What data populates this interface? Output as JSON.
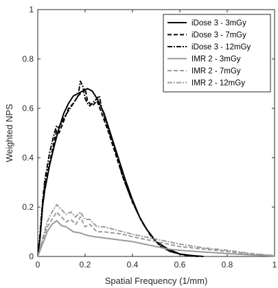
{
  "chart_data": {
    "type": "line",
    "xlabel": "Spatial Frequency (1/mm)",
    "ylabel": "Weighted NPS",
    "xlim": [
      0,
      1
    ],
    "ylim": [
      0,
      1
    ],
    "x_ticks": [
      0,
      0.2,
      0.4,
      0.6,
      0.8,
      1
    ],
    "x_tick_labels": [
      "0",
      "0.2",
      "0.4",
      "0.6",
      "0.8",
      "1"
    ],
    "y_ticks": [
      0,
      0.2,
      0.4,
      0.6,
      0.8,
      1
    ],
    "y_tick_labels": [
      "0",
      "0.2",
      "0.4",
      "0.6",
      "0.8",
      "1"
    ],
    "grid": false,
    "legend_position": "top-right",
    "series": [
      {
        "name": "iDose 3 - 3mGy",
        "color": "#000000",
        "dash": "solid",
        "x": [
          0,
          0.01,
          0.02,
          0.03,
          0.05,
          0.07,
          0.09,
          0.11,
          0.13,
          0.15,
          0.17,
          0.19,
          0.21,
          0.23,
          0.25,
          0.28,
          0.31,
          0.34,
          0.37,
          0.4,
          0.43,
          0.46,
          0.5,
          0.55,
          0.6,
          0.65,
          0.7
        ],
        "y": [
          0,
          0.08,
          0.2,
          0.27,
          0.37,
          0.45,
          0.52,
          0.58,
          0.62,
          0.65,
          0.66,
          0.67,
          0.68,
          0.67,
          0.64,
          0.58,
          0.49,
          0.4,
          0.31,
          0.23,
          0.16,
          0.11,
          0.06,
          0.03,
          0.01,
          0.004,
          0
        ]
      },
      {
        "name": "iDose 3 - 7mGy",
        "color": "#000000",
        "dash": "dashed",
        "x": [
          0,
          0.01,
          0.02,
          0.03,
          0.05,
          0.07,
          0.08,
          0.09,
          0.11,
          0.13,
          0.15,
          0.17,
          0.19,
          0.2,
          0.21,
          0.23,
          0.25,
          0.27,
          0.3,
          0.33,
          0.36,
          0.4,
          0.44,
          0.48,
          0.52,
          0.56,
          0.62,
          0.68
        ],
        "y": [
          0,
          0.08,
          0.2,
          0.29,
          0.38,
          0.47,
          0.51,
          0.5,
          0.55,
          0.6,
          0.62,
          0.65,
          0.67,
          0.68,
          0.63,
          0.61,
          0.63,
          0.58,
          0.5,
          0.41,
          0.32,
          0.22,
          0.14,
          0.08,
          0.04,
          0.02,
          0.005,
          0
        ]
      },
      {
        "name": "iDose 3 - 12mGy",
        "color": "#000000",
        "dash": "dashdot",
        "x": [
          0,
          0.01,
          0.02,
          0.03,
          0.05,
          0.07,
          0.08,
          0.09,
          0.11,
          0.13,
          0.15,
          0.17,
          0.18,
          0.19,
          0.2,
          0.21,
          0.22,
          0.24,
          0.26,
          0.27,
          0.3,
          0.33,
          0.36,
          0.4,
          0.44,
          0.48,
          0.52,
          0.56,
          0.62,
          0.68
        ],
        "y": [
          0,
          0.1,
          0.22,
          0.31,
          0.42,
          0.5,
          0.53,
          0.52,
          0.56,
          0.59,
          0.62,
          0.65,
          0.71,
          0.69,
          0.64,
          0.62,
          0.61,
          0.63,
          0.65,
          0.6,
          0.51,
          0.42,
          0.32,
          0.22,
          0.14,
          0.08,
          0.04,
          0.02,
          0.005,
          0
        ]
      },
      {
        "name": "IMR 2 - 3mGy",
        "color": "#9a9a9a",
        "dash": "solid",
        "x": [
          0,
          0.02,
          0.04,
          0.06,
          0.08,
          0.1,
          0.12,
          0.15,
          0.18,
          0.21,
          0.24,
          0.28,
          0.32,
          0.36,
          0.4,
          0.45,
          0.5,
          0.55,
          0.6,
          0.7,
          0.8,
          0.9,
          1.0
        ],
        "y": [
          0,
          0.05,
          0.1,
          0.13,
          0.145,
          0.125,
          0.12,
          0.1,
          0.095,
          0.085,
          0.08,
          0.075,
          0.07,
          0.065,
          0.06,
          0.05,
          0.04,
          0.03,
          0.025,
          0.018,
          0.012,
          0.006,
          0.002
        ]
      },
      {
        "name": "IMR 2 - 7mGy",
        "color": "#9a9a9a",
        "dash": "dashed",
        "x": [
          0,
          0.02,
          0.04,
          0.06,
          0.08,
          0.1,
          0.12,
          0.14,
          0.16,
          0.18,
          0.2,
          0.22,
          0.25,
          0.28,
          0.32,
          0.36,
          0.4,
          0.45,
          0.5,
          0.55,
          0.6,
          0.7,
          0.8,
          0.9,
          1.0
        ],
        "y": [
          0,
          0.06,
          0.12,
          0.15,
          0.18,
          0.16,
          0.14,
          0.15,
          0.13,
          0.16,
          0.12,
          0.13,
          0.1,
          0.1,
          0.095,
          0.09,
          0.08,
          0.07,
          0.06,
          0.05,
          0.04,
          0.03,
          0.02,
          0.01,
          0.003
        ]
      },
      {
        "name": "IMR 2 - 12mGy",
        "color": "#9a9a9a",
        "dash": "dashdot",
        "x": [
          0,
          0.02,
          0.04,
          0.06,
          0.08,
          0.1,
          0.12,
          0.14,
          0.16,
          0.18,
          0.2,
          0.22,
          0.25,
          0.28,
          0.32,
          0.36,
          0.4,
          0.45,
          0.5,
          0.55,
          0.6,
          0.7,
          0.8,
          0.9,
          1.0
        ],
        "y": [
          0,
          0.07,
          0.14,
          0.18,
          0.21,
          0.19,
          0.17,
          0.18,
          0.16,
          0.18,
          0.15,
          0.15,
          0.12,
          0.12,
          0.11,
          0.1,
          0.09,
          0.08,
          0.07,
          0.06,
          0.05,
          0.035,
          0.025,
          0.012,
          0.004
        ]
      }
    ]
  }
}
